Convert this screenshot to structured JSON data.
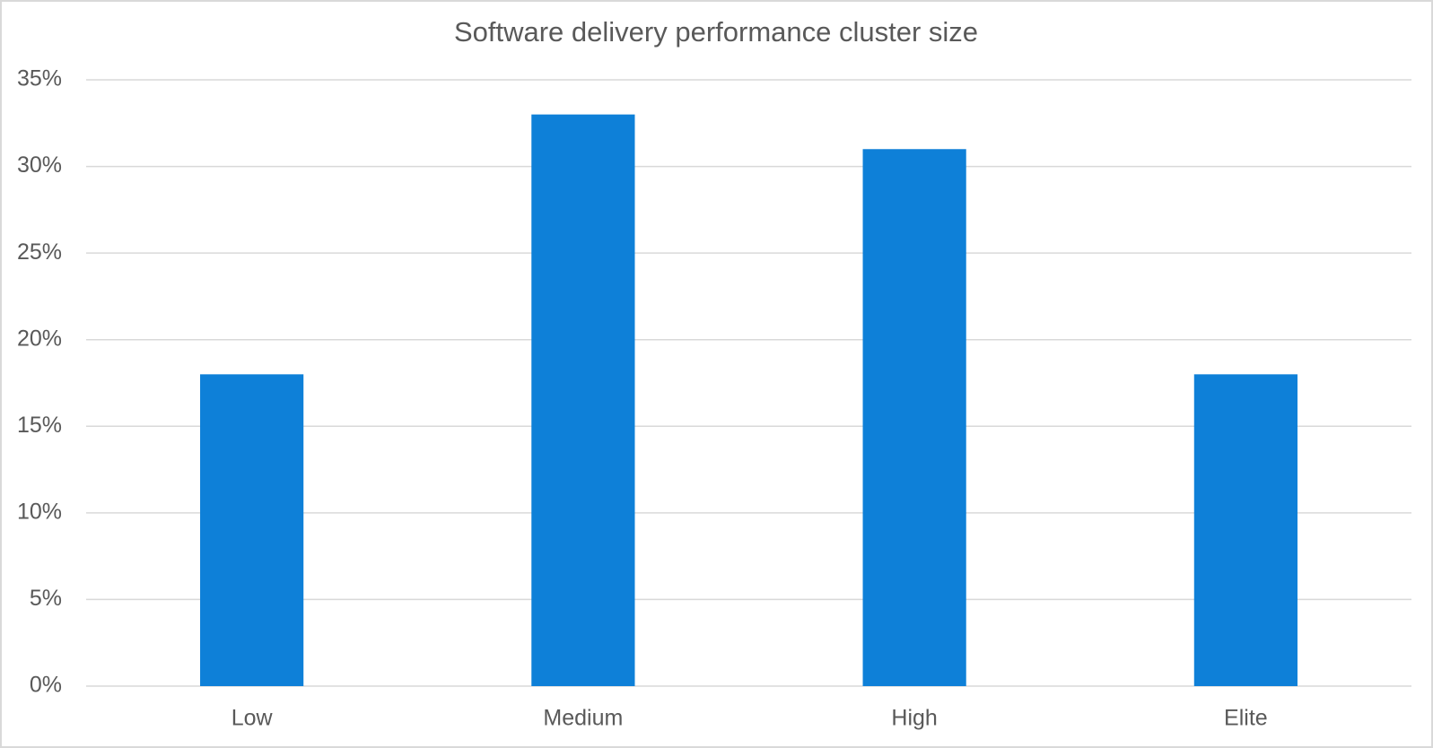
{
  "chart_data": {
    "type": "bar",
    "title": "Software delivery performance cluster size",
    "categories": [
      "Low",
      "Medium",
      "High",
      "Elite"
    ],
    "values": [
      18,
      33,
      31,
      18
    ],
    "color": "#0e80d8",
    "ylim": [
      0,
      35
    ],
    "yticks": [
      {
        "value": 0,
        "label": "0%"
      },
      {
        "value": 5,
        "label": "5%"
      },
      {
        "value": 10,
        "label": "10%"
      },
      {
        "value": 15,
        "label": "15%"
      },
      {
        "value": 20,
        "label": "20%"
      },
      {
        "value": 25,
        "label": "25%"
      },
      {
        "value": 30,
        "label": "30%"
      },
      {
        "value": 35,
        "label": "35%"
      }
    ],
    "grid": true
  }
}
